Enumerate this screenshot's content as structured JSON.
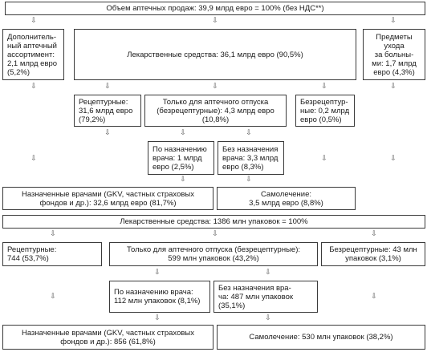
{
  "nodes": {
    "total_sales": "Объем аптечных продаж: 39,9 млрд евро = 100% (без НДС**)",
    "additional": "Дополнитель-\nный аптечный\nассортимент:\n2,1 млрд евро\n(5,2%)",
    "medicines_value": "Лекарственные средства: 36,1 млрд евро (90,5%)",
    "care_items": "Предметы уходa\nза больны-\nми: 1,7 млрд\nевро (4,3%)",
    "rx_value": "Рецептурные:\n31,6 млрд евро\n(79,2%)",
    "pharmacy_only_value": "Только для аптечного отпуска\n(безрецептурные): 4,3 млрд евро\n(10,8%)",
    "otc_value": "Безрецептур-\nные: 0,2 млрд\nевро (0,5%)",
    "prescribed_value": "По назначению\nврача: 1 млрд\nевро (2,5%)",
    "unprescribed_value": "Без назначения\nврача: 3,3 млрд\nевро (8,3%)",
    "doctors_value": "Назначенные врачами (GKV, частных страховых\nфондов и др.): 32,6 млрд евро (81,7%)",
    "selfmed_value": "Самолечение:\n3,5 млрд евро (8,8%)",
    "medicines_packs": "Лекарственные средства: 1386 млн упаковок = 100%",
    "rx_packs": "Рецептурные:\n744 (53,7%)",
    "pharmacy_only_packs": "Только для аптечного отпуска (безрецептурные):\n599 млн упаковок (43,2%)",
    "otc_packs": "Безрецептурные: 43 млн\nупаковок (3,1%)",
    "prescribed_packs": "По назначению врача:\n112 млн упаковок (8,1%)",
    "unprescribed_packs": "Без назначения вра-\nча: 487 млн упаковок\n(35,1%)",
    "doctors_packs": "Назначенные врачами (GKV, частных страховых\nфондов и др.): 856 (61,8%)",
    "selfmed_packs": "Самолечение: 530 млн упаковок (38,2%)"
  },
  "arrow_glyph": "⇩"
}
